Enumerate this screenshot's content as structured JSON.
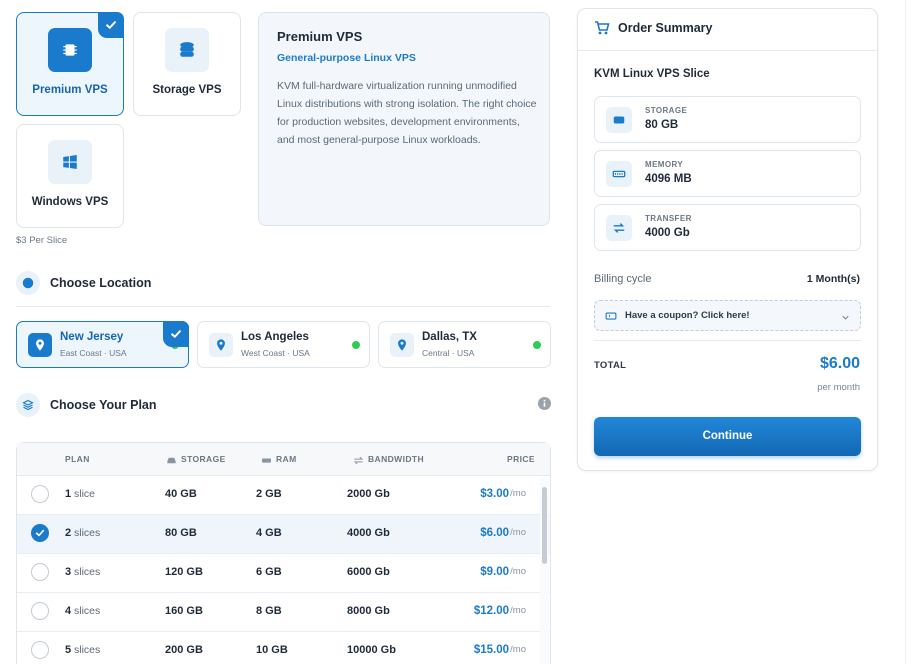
{
  "products": [
    {
      "label": "Premium VPS",
      "selected": true
    },
    {
      "label": "Storage VPS"
    },
    {
      "label": "Windows VPS"
    }
  ],
  "price_note": "$3 Per Slice",
  "description": {
    "title": "Premium VPS",
    "subtitle": "General-purpose Linux VPS",
    "text": "KVM full-hardware virtualization running unmodified Linux distributions with strong isolation. The right choice for production websites, development environments, and most general-purpose Linux workloads."
  },
  "location": {
    "heading": "Choose Location",
    "options": [
      {
        "name": "New Jersey",
        "region": "East Coast · USA",
        "selected": true
      },
      {
        "name": "Los Angeles",
        "region": "West Coast · USA"
      },
      {
        "name": "Dallas, TX",
        "region": "Central · USA"
      }
    ]
  },
  "plan": {
    "heading": "Choose Your Plan",
    "columns": [
      "PLAN",
      "STORAGE",
      "RAM",
      "BANDWIDTH",
      "PRICE"
    ],
    "rows": [
      {
        "count": "1",
        "unit": "slice",
        "storage": "40 GB",
        "ram": "2 GB",
        "bandwidth": "2000 Gb",
        "price": "$3.00",
        "period": "/mo"
      },
      {
        "count": "2",
        "unit": "slices",
        "storage": "80 GB",
        "ram": "4 GB",
        "bandwidth": "4000 Gb",
        "price": "$6.00",
        "period": "/mo",
        "selected": true
      },
      {
        "count": "3",
        "unit": "slices",
        "storage": "120 GB",
        "ram": "6 GB",
        "bandwidth": "6000 Gb",
        "price": "$9.00",
        "period": "/mo"
      },
      {
        "count": "4",
        "unit": "slices",
        "storage": "160 GB",
        "ram": "8 GB",
        "bandwidth": "8000 Gb",
        "price": "$12.00",
        "period": "/mo"
      },
      {
        "count": "5",
        "unit": "slices",
        "storage": "200 GB",
        "ram": "10 GB",
        "bandwidth": "10000 Gb",
        "price": "$15.00",
        "period": "/mo"
      }
    ]
  },
  "summary": {
    "title": "Order Summary",
    "product": "KVM Linux VPS Slice",
    "specs": [
      {
        "label": "STORAGE",
        "value": "80 GB"
      },
      {
        "label": "MEMORY",
        "value": "4096 MB"
      },
      {
        "label": "TRANSFER",
        "value": "4000 Gb"
      }
    ],
    "billing_label": "Billing cycle",
    "billing_value": "1 Month(s)",
    "coupon": "Have a coupon? Click here!",
    "total_label": "TOTAL",
    "total": "$6.00",
    "total_period": "per month",
    "button": "Continue"
  }
}
